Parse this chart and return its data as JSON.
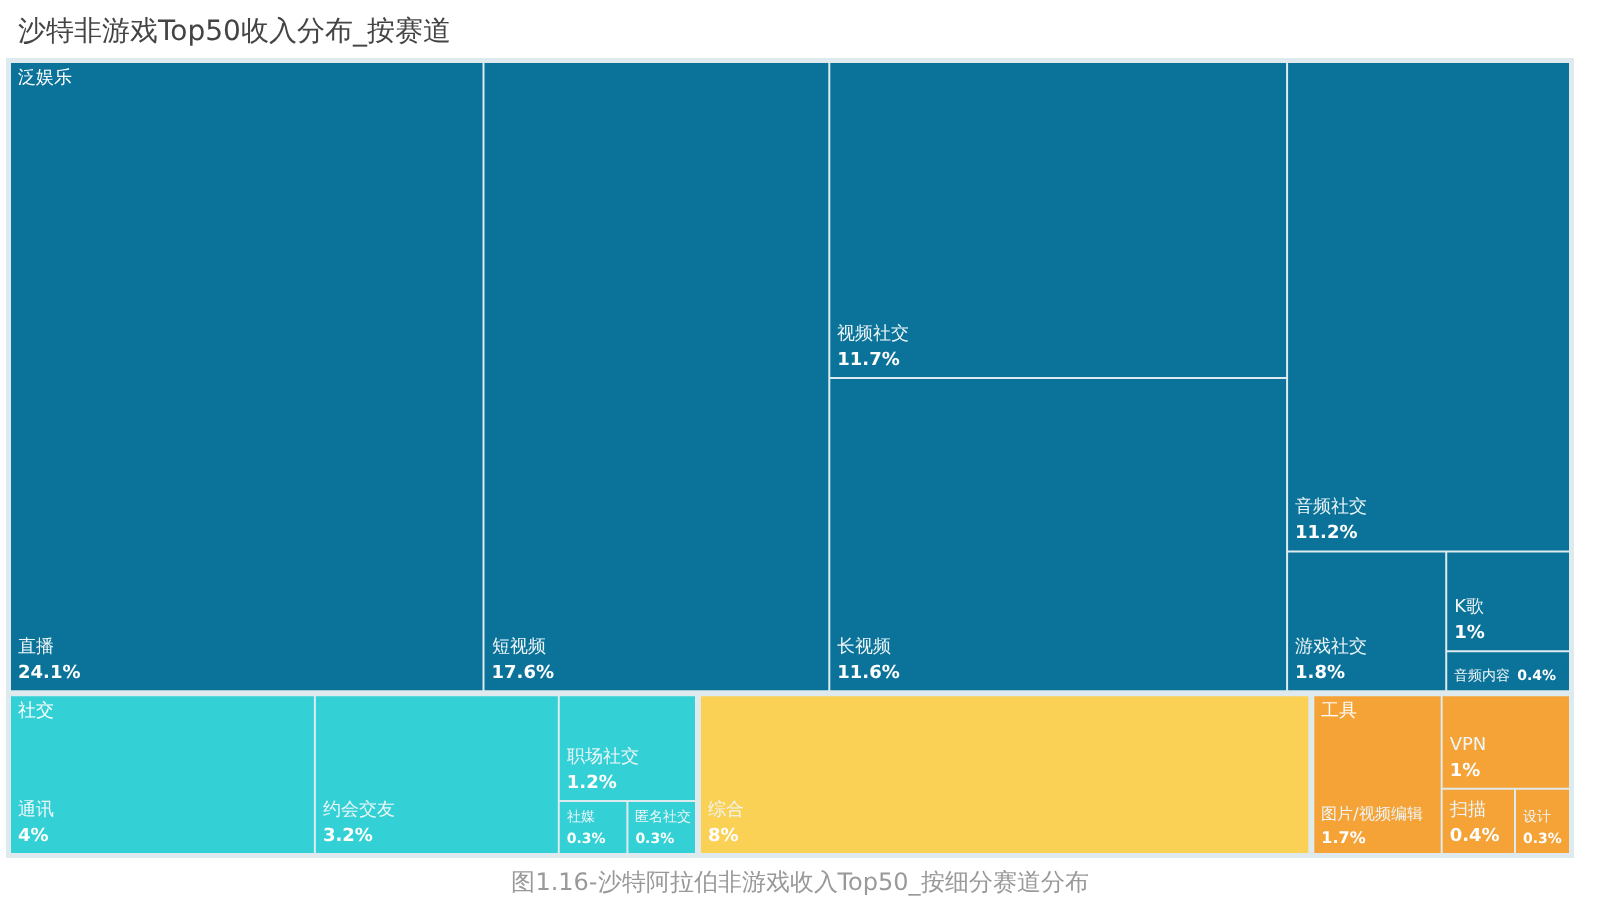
{
  "chart_data": {
    "type": "other",
    "title": "沙特非游戏Top50收入分布_按赛道",
    "annotations": [
      "图1.16-沙特阿拉伯非游戏收入Top50_按细分赛道分布"
    ],
    "categories": [
      "直播",
      "短视频",
      "视频社交",
      "长视频",
      "音频社交",
      "游戏社交",
      "K歌",
      "音频内容",
      "通讯",
      "约会交友",
      "职场社交",
      "社媒",
      "匿名社交",
      "综合",
      "图片/视频编辑",
      "VPN",
      "扫描",
      "设计"
    ],
    "series": [
      {
        "name": "泛娱乐",
        "color": "#0b7399",
        "values": [
          24.1,
          17.6,
          11.7,
          11.6,
          11.2,
          1.8,
          1,
          0.4,
          null,
          null,
          null,
          null,
          null,
          null,
          null,
          null,
          null,
          null
        ],
        "value_labels": [
          "24.1%",
          "17.6%",
          "11.7%",
          "11.6%",
          "11.2%",
          "1.8%",
          "1%",
          "0.4%",
          null,
          null,
          null,
          null,
          null,
          null,
          null,
          null,
          null,
          null
        ]
      },
      {
        "name": "社交",
        "color": "#33d1d6",
        "values": [
          null,
          null,
          null,
          null,
          null,
          null,
          null,
          null,
          4,
          3.2,
          1.2,
          0.3,
          0.3,
          null,
          null,
          null,
          null,
          null
        ],
        "value_labels": [
          null,
          null,
          null,
          null,
          null,
          null,
          null,
          null,
          "4%",
          "3.2%",
          "1.2%",
          "0.3%",
          "0.3%",
          null,
          null,
          null,
          null,
          null
        ]
      },
      {
        "color": "#fbd155",
        "values": [
          null,
          null,
          null,
          null,
          null,
          null,
          null,
          null,
          null,
          null,
          null,
          null,
          null,
          8,
          null,
          null,
          null,
          null
        ],
        "value_labels": [
          null,
          null,
          null,
          null,
          null,
          null,
          null,
          null,
          null,
          null,
          null,
          null,
          null,
          "8%",
          null,
          null,
          null,
          null
        ]
      },
      {
        "name": "工具",
        "color": "#f5a236",
        "values": [
          null,
          null,
          null,
          null,
          null,
          null,
          null,
          null,
          null,
          null,
          null,
          null,
          null,
          null,
          1.7,
          1,
          0.4,
          0.3
        ],
        "value_labels": [
          null,
          null,
          null,
          null,
          null,
          null,
          null,
          null,
          null,
          null,
          null,
          null,
          null,
          null,
          "1.7%",
          "1%",
          "0.4%",
          "0.3%"
        ]
      }
    ]
  }
}
